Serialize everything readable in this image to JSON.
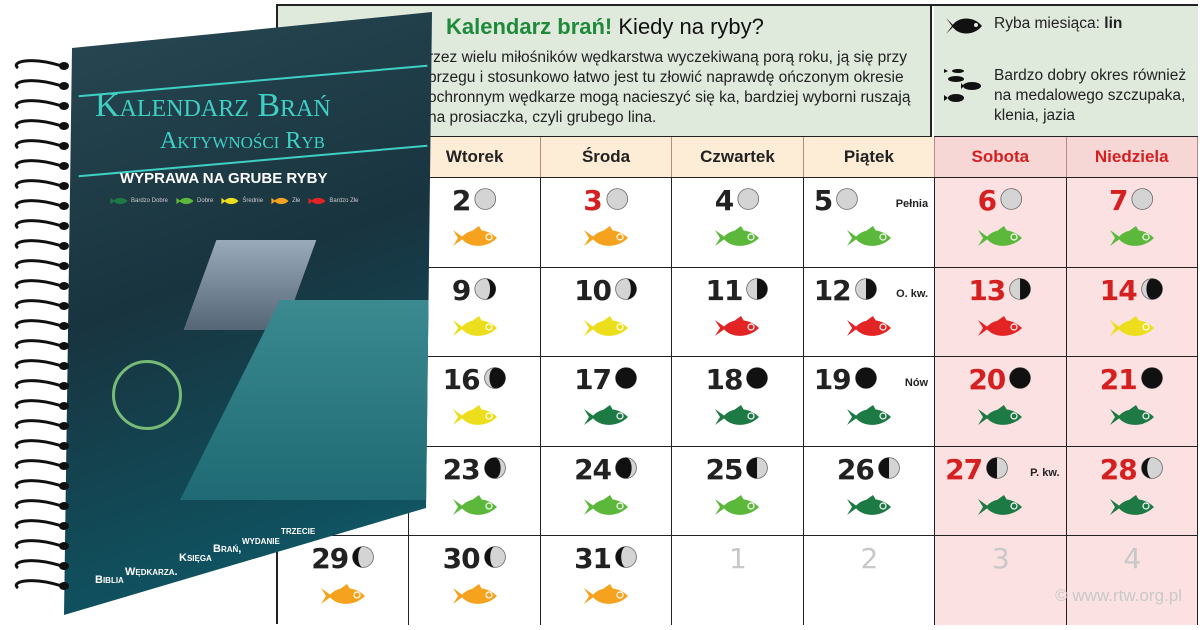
{
  "intro": {
    "title_green": "Kalendarz brań!",
    "title_rest": " Kiedy na ryby?",
    "text": "rzez wielu miłośników wędkarstwa wyczekiwaną porą roku, ją się przy brzegu i stosunkowo łatwo jest tu złowić naprawdę ończonym okresie ochronnym wędkarze mogą nacieszyć się ka, bardziej wyborni ruszają na prosiaczka, czyli grubego lina."
  },
  "legend": {
    "fish_of_month_label": "Ryba miesiąca: ",
    "fish_of_month": "lin",
    "extra": "Bardzo dobry okres również na medalowego szczupaka, klenia, jazia"
  },
  "days": [
    "",
    "Wtorek",
    "Środa",
    "Czwartek",
    "Piątek",
    "Sobota",
    "Niedziela"
  ],
  "colors": {
    "very_good": "#1e7a45",
    "good": "#5cb83a",
    "medium": "#ecde1c",
    "bad": "#f5a31e",
    "very_bad": "#e32424",
    "weekend": "#d42020"
  },
  "weeks": [
    [
      null,
      {
        "d": "2",
        "m": "full",
        "f": "bad"
      },
      {
        "d": "3",
        "m": "full",
        "f": "bad",
        "red": true
      },
      {
        "d": "4",
        "m": "full",
        "f": "good"
      },
      {
        "d": "5",
        "m": "full",
        "f": "good",
        "p": "Pełnia"
      },
      {
        "d": "6",
        "m": "full",
        "f": "good"
      },
      {
        "d": "7",
        "m": "full",
        "f": "good"
      }
    ],
    [
      null,
      {
        "d": "9",
        "m": "wan-gib",
        "f": "medium"
      },
      {
        "d": "10",
        "m": "wan-gib",
        "f": "medium"
      },
      {
        "d": "11",
        "m": "last",
        "f": "very_bad"
      },
      {
        "d": "12",
        "m": "last",
        "f": "very_bad",
        "p": "O. kw."
      },
      {
        "d": "13",
        "m": "last",
        "f": "very_bad"
      },
      {
        "d": "14",
        "m": "wan-cres",
        "f": "medium"
      }
    ],
    [
      null,
      {
        "d": "16",
        "m": "wan-cres",
        "f": "medium"
      },
      {
        "d": "17",
        "m": "new",
        "f": "very_good"
      },
      {
        "d": "18",
        "m": "new",
        "f": "very_good"
      },
      {
        "d": "19",
        "m": "new",
        "f": "very_good",
        "p": "Nów"
      },
      {
        "d": "20",
        "m": "new",
        "f": "very_good"
      },
      {
        "d": "21",
        "m": "new",
        "f": "very_good"
      }
    ],
    [
      null,
      {
        "d": "23",
        "m": "wax-cres",
        "f": "good"
      },
      {
        "d": "24",
        "m": "wax-cres",
        "f": "good"
      },
      {
        "d": "25",
        "m": "first",
        "f": "good"
      },
      {
        "d": "26",
        "m": "first",
        "f": "very_good"
      },
      {
        "d": "27",
        "m": "first",
        "f": "very_good",
        "p": "P. kw."
      },
      {
        "d": "28",
        "m": "wax-gib",
        "f": "very_good"
      }
    ],
    [
      {
        "d": "29",
        "m": "wax-gib",
        "f": "bad"
      },
      {
        "d": "30",
        "m": "wax-gib",
        "f": "bad"
      },
      {
        "d": "31",
        "m": "wax-gib",
        "f": "bad"
      },
      {
        "d": "1",
        "grey": true
      },
      {
        "d": "2",
        "grey": true
      },
      {
        "d": "3",
        "grey": true
      },
      {
        "d": "4",
        "grey": true
      }
    ]
  ],
  "book": {
    "title1": "Kalendarz Brań",
    "title2": "Aktywności Ryb",
    "subtitle": "WYPRAWA NA GRUBE RYBY",
    "scale": [
      "Bardzo Dobre",
      "Dobre",
      "Średnie",
      "Złe",
      "Bardzo Złe"
    ],
    "footer": "Biblia Wędkarza. Księga Brań, wydanie trzecie"
  },
  "watermark": "© www.rtw.org.pl"
}
